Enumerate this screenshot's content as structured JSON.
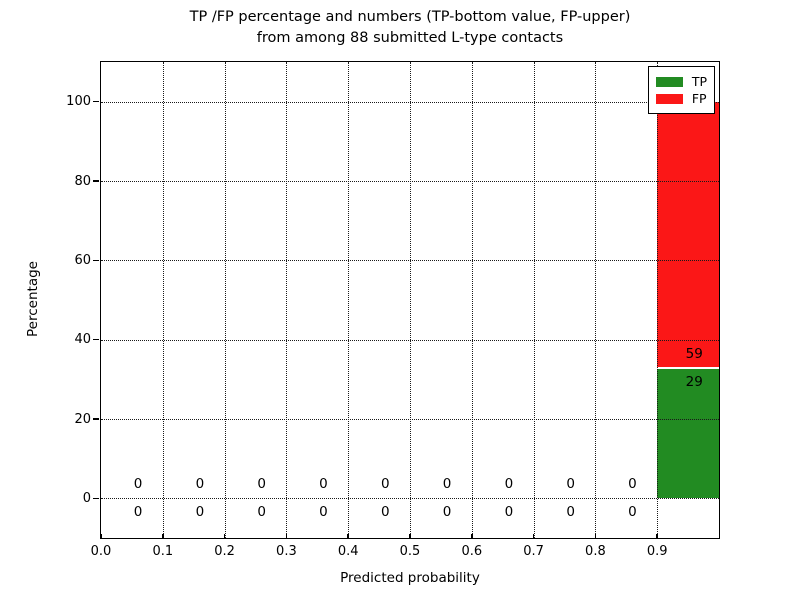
{
  "chart_data": {
    "type": "bar",
    "stacked": true,
    "title_lines": [
      "TP /FP percentage and numbers (TP-bottom value, FP-upper)",
      "from among 88 submitted L-type contacts"
    ],
    "xlabel": "Predicted probability",
    "ylabel": "Percentage",
    "xlim": [
      0.0,
      1.0
    ],
    "ylim": [
      -10,
      110
    ],
    "xtick_labels": [
      "0.0",
      "0.1",
      "0.2",
      "0.3",
      "0.4",
      "0.5",
      "0.6",
      "0.7",
      "0.8",
      "0.9"
    ],
    "ytick_labels": [
      "0",
      "20",
      "40",
      "60",
      "80",
      "100"
    ],
    "grid": true,
    "grid_style": "dotted",
    "legend_position": "upper right",
    "total_contacts": 88,
    "bin_width": 0.1,
    "bin_starts": [
      0.0,
      0.1,
      0.2,
      0.3,
      0.4,
      0.5,
      0.6,
      0.7,
      0.8,
      0.9
    ],
    "series": [
      {
        "name": "TP",
        "color": "#228b22",
        "counts": [
          0,
          0,
          0,
          0,
          0,
          0,
          0,
          0,
          0,
          29
        ],
        "percents": [
          0,
          0,
          0,
          0,
          0,
          0,
          0,
          0,
          0,
          32.95
        ]
      },
      {
        "name": "FP",
        "color": "#fb1717",
        "counts": [
          0,
          0,
          0,
          0,
          0,
          0,
          0,
          0,
          0,
          59
        ],
        "percents": [
          0,
          0,
          0,
          0,
          0,
          0,
          0,
          0,
          0,
          67.05
        ]
      }
    ],
    "label_x_offset": 0.06,
    "label_y_offset_pct": 3.55
  }
}
